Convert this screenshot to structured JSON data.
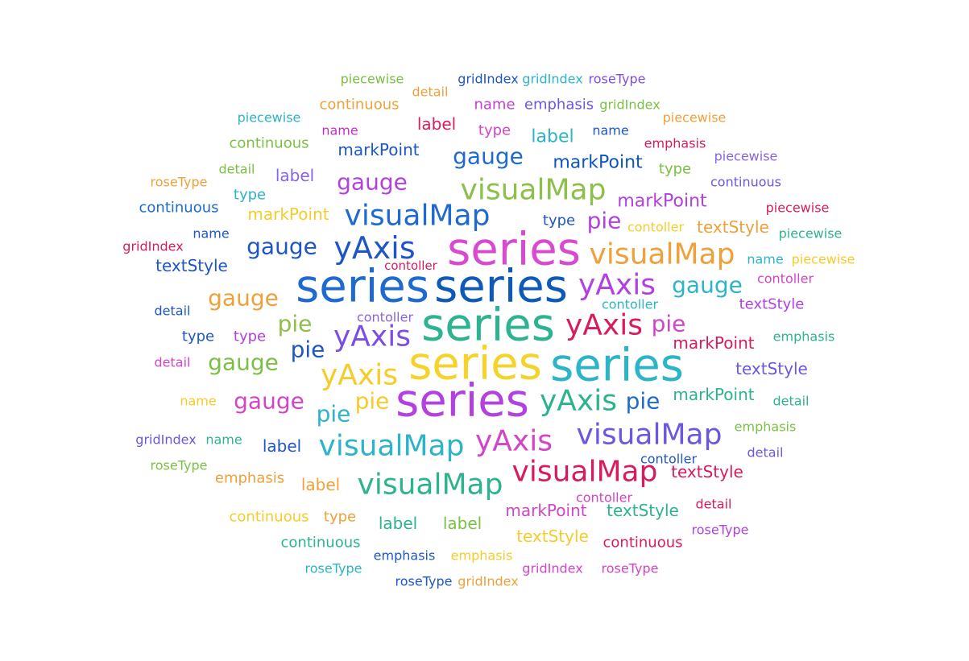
{
  "chart_data": {
    "type": "wordcloud",
    "words": [
      {
        "text": "piecewise",
        "color": "#7ac143"
      },
      {
        "text": "gridIndex",
        "color": "#1e56c7"
      },
      {
        "text": "gridIndex",
        "color": "#2cb4c8"
      },
      {
        "text": "roseType",
        "color": "#7d4ee0"
      },
      {
        "text": "detail",
        "color": "#f0a03a"
      },
      {
        "text": "continuous",
        "color": "#f0a03a"
      },
      {
        "text": "name",
        "color": "#c43fd2"
      },
      {
        "text": "emphasis",
        "color": "#6a58e0"
      },
      {
        "text": "gridIndex",
        "color": "#7ac143"
      },
      {
        "text": "piecewise",
        "color": "#2cb4c8"
      },
      {
        "text": "label",
        "color": "#d81b60"
      },
      {
        "text": "piecewise",
        "color": "#f0a03a"
      },
      {
        "text": "name",
        "color": "#c42ec8"
      },
      {
        "text": "type",
        "color": "#d344c7"
      },
      {
        "text": "label",
        "color": "#2cb4c8"
      },
      {
        "text": "name",
        "color": "#1e56c7"
      },
      {
        "text": "continuous",
        "color": "#7ac143"
      },
      {
        "text": "markPoint",
        "color": "#1e56c7"
      },
      {
        "text": "emphasis",
        "color": "#d81b60"
      },
      {
        "text": "piecewise",
        "color": "#8a63e0"
      },
      {
        "text": "gauge",
        "color": "#1e6ad0"
      },
      {
        "text": "markPoint",
        "color": "#0d56c2"
      },
      {
        "text": "detail",
        "color": "#7ac143"
      },
      {
        "text": "type",
        "color": "#7ac143"
      },
      {
        "text": "label",
        "color": "#8a63e0"
      },
      {
        "text": "roseType",
        "color": "#f0a03a"
      },
      {
        "text": "continuous",
        "color": "#6a58e0"
      },
      {
        "text": "gauge",
        "color": "#b341e0"
      },
      {
        "text": "visualMap",
        "color": "#8cc04a"
      },
      {
        "text": "type",
        "color": "#2cb4c8"
      },
      {
        "text": "continuous",
        "color": "#1e6ad0"
      },
      {
        "text": "markPoint",
        "color": "#b341e0"
      },
      {
        "text": "piecewise",
        "color": "#d81b60"
      },
      {
        "text": "markPoint",
        "color": "#f5cc2a"
      },
      {
        "text": "visualMap",
        "color": "#1e6ad0"
      },
      {
        "text": "type",
        "color": "#1e56c7"
      },
      {
        "text": "pie",
        "color": "#b341e0"
      },
      {
        "text": "contoller",
        "color": "#f5cc2a"
      },
      {
        "text": "textStyle",
        "color": "#f0a03a"
      },
      {
        "text": "name",
        "color": "#1e56c7"
      },
      {
        "text": "gridIndex",
        "color": "#d81b60"
      },
      {
        "text": "series",
        "color": "#d84ad0"
      },
      {
        "text": "piecewise",
        "color": "#2db38f"
      },
      {
        "text": "gauge",
        "color": "#1e56c7"
      },
      {
        "text": "yAxis",
        "color": "#1e56c7"
      },
      {
        "text": "visualMap",
        "color": "#f0a03a"
      },
      {
        "text": "textStyle",
        "color": "#1e56c7"
      },
      {
        "text": "contoller",
        "color": "#d81b60"
      },
      {
        "text": "name",
        "color": "#2cb4c8"
      },
      {
        "text": "piecewise",
        "color": "#f5cc2a"
      },
      {
        "text": "series",
        "color": "#1e6ad0"
      },
      {
        "text": "series",
        "color": "#0d5ab8"
      },
      {
        "text": "yAxis",
        "color": "#b341e0"
      },
      {
        "text": "contoller",
        "color": "#d344c7"
      },
      {
        "text": "gauge",
        "color": "#2cb4c8"
      },
      {
        "text": "gauge",
        "color": "#f0a03a"
      },
      {
        "text": "contoller",
        "color": "#2cb4c8"
      },
      {
        "text": "textStyle",
        "color": "#b341e0"
      },
      {
        "text": "detail",
        "color": "#1e56c7"
      },
      {
        "text": "contoller",
        "color": "#8a63e0"
      },
      {
        "text": "pie",
        "color": "#8cc04a"
      },
      {
        "text": "series",
        "color": "#2db38f"
      },
      {
        "text": "yAxis",
        "color": "#d81b60"
      },
      {
        "text": "pie",
        "color": "#d344c7"
      },
      {
        "text": "type",
        "color": "#1e56c7"
      },
      {
        "text": "type",
        "color": "#b341e0"
      },
      {
        "text": "yAxis",
        "color": "#7d4ee0"
      },
      {
        "text": "emphasis",
        "color": "#2db38f"
      },
      {
        "text": "pie",
        "color": "#1e56c7"
      },
      {
        "text": "markPoint",
        "color": "#d81b60"
      },
      {
        "text": "detail",
        "color": "#d344c7"
      },
      {
        "text": "gauge",
        "color": "#7ac143"
      },
      {
        "text": "series",
        "color": "#f5d32a"
      },
      {
        "text": "series",
        "color": "#2cb4c8"
      },
      {
        "text": "textStyle",
        "color": "#6a58e0"
      },
      {
        "text": "yAxis",
        "color": "#f5cc2a"
      },
      {
        "text": "name",
        "color": "#f5cc2a"
      },
      {
        "text": "gauge",
        "color": "#d344c7"
      },
      {
        "text": "pie",
        "color": "#f5cc2a"
      },
      {
        "text": "series",
        "color": "#b341e0"
      },
      {
        "text": "yAxis",
        "color": "#2db38f"
      },
      {
        "text": "pie",
        "color": "#1e6ad0"
      },
      {
        "text": "markPoint",
        "color": "#2db38f"
      },
      {
        "text": "detail",
        "color": "#2db38f"
      },
      {
        "text": "pie",
        "color": "#2cb4c8"
      },
      {
        "text": "emphasis",
        "color": "#7ac143"
      },
      {
        "text": "gridIndex",
        "color": "#6a58e0"
      },
      {
        "text": "name",
        "color": "#2db38f"
      },
      {
        "text": "label",
        "color": "#1e56c7"
      },
      {
        "text": "visualMap",
        "color": "#2cb4c8"
      },
      {
        "text": "yAxis",
        "color": "#d344c7"
      },
      {
        "text": "visualMap",
        "color": "#6a58e0"
      },
      {
        "text": "detail",
        "color": "#6a58e0"
      },
      {
        "text": "roseType",
        "color": "#7ac143"
      },
      {
        "text": "emphasis",
        "color": "#f0a03a"
      },
      {
        "text": "label",
        "color": "#f0a03a"
      },
      {
        "text": "visualMap",
        "color": "#2db38f"
      },
      {
        "text": "visualMap",
        "color": "#d81b60"
      },
      {
        "text": "contoller",
        "color": "#1e56c7"
      },
      {
        "text": "textStyle",
        "color": "#d81b60"
      },
      {
        "text": "contoller",
        "color": "#d344c7"
      },
      {
        "text": "detail",
        "color": "#d81b60"
      },
      {
        "text": "continuous",
        "color": "#f5cc2a"
      },
      {
        "text": "type",
        "color": "#f0a03a"
      },
      {
        "text": "markPoint",
        "color": "#d344c7"
      },
      {
        "text": "textStyle",
        "color": "#2db38f"
      },
      {
        "text": "label",
        "color": "#2db38f"
      },
      {
        "text": "label",
        "color": "#7ac143"
      },
      {
        "text": "textStyle",
        "color": "#f5cc2a"
      },
      {
        "text": "continuous",
        "color": "#d81b60"
      },
      {
        "text": "roseType",
        "color": "#b341e0"
      },
      {
        "text": "continuous",
        "color": "#2db38f"
      },
      {
        "text": "emphasis",
        "color": "#1e56c7"
      },
      {
        "text": "emphasis",
        "color": "#f5cc2a"
      },
      {
        "text": "roseType",
        "color": "#2cb4c8"
      },
      {
        "text": "gridIndex",
        "color": "#d344c7"
      },
      {
        "text": "roseType",
        "color": "#d344c7"
      },
      {
        "text": "roseType",
        "color": "#1e56c7"
      },
      {
        "text": "gridIndex",
        "color": "#f0a03a"
      }
    ]
  }
}
